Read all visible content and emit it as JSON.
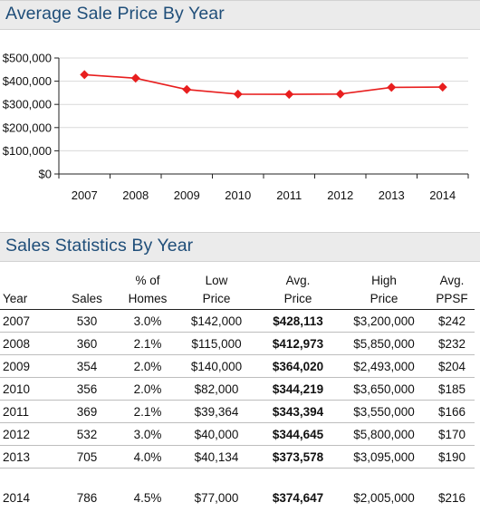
{
  "chart_title": "Average Sale Price By Year",
  "table_title": "Sales Statistics By Year",
  "colors": {
    "line": "#e81e1e",
    "title": "#1f4e79",
    "grid": "#d9d9d9",
    "banner": "#ebebeb"
  },
  "chart_data": {
    "type": "line",
    "title": "Average Sale Price By Year",
    "xlabel": "",
    "ylabel": "",
    "categories": [
      "2007",
      "2008",
      "2009",
      "2010",
      "2011",
      "2012",
      "2013",
      "2014"
    ],
    "series": [
      {
        "values": [
          428113,
          412973,
          364020,
          344219,
          343394,
          344645,
          373578,
          374647
        ]
      }
    ],
    "ylim": [
      0,
      500000
    ],
    "yticks": [
      0,
      100000,
      200000,
      300000,
      400000,
      500000
    ],
    "ytick_labels": [
      "$0",
      "$100,000",
      "$200,000",
      "$300,000",
      "$400,000",
      "$500,000"
    ],
    "grid": "horizontal",
    "marker": "diamond"
  },
  "table": {
    "headers": [
      {
        "key": "year",
        "label": "Year"
      },
      {
        "key": "sales",
        "label": "Sales"
      },
      {
        "key": "pct",
        "label": "% of\nHomes"
      },
      {
        "key": "low",
        "label": "Low\nPrice"
      },
      {
        "key": "avg",
        "label": "Avg.\nPrice"
      },
      {
        "key": "high",
        "label": "High\nPrice"
      },
      {
        "key": "ppsf",
        "label": "Avg.\nPPSF"
      }
    ],
    "rows": [
      {
        "year": "2007",
        "sales": "530",
        "pct": "3.0%",
        "low": "$142,000",
        "avg": "$428,113",
        "high": "$3,200,000",
        "ppsf": "$242"
      },
      {
        "year": "2008",
        "sales": "360",
        "pct": "2.1%",
        "low": "$115,000",
        "avg": "$412,973",
        "high": "$5,850,000",
        "ppsf": "$232"
      },
      {
        "year": "2009",
        "sales": "354",
        "pct": "2.0%",
        "low": "$140,000",
        "avg": "$364,020",
        "high": "$2,493,000",
        "ppsf": "$204"
      },
      {
        "year": "2010",
        "sales": "356",
        "pct": "2.0%",
        "low": "$82,000",
        "avg": "$344,219",
        "high": "$3,650,000",
        "ppsf": "$185"
      },
      {
        "year": "2011",
        "sales": "369",
        "pct": "2.1%",
        "low": "$39,364",
        "avg": "$343,394",
        "high": "$3,550,000",
        "ppsf": "$166"
      },
      {
        "year": "2012",
        "sales": "532",
        "pct": "3.0%",
        "low": "$40,000",
        "avg": "$344,645",
        "high": "$5,800,000",
        "ppsf": "$170"
      },
      {
        "year": "2013",
        "sales": "705",
        "pct": "4.0%",
        "low": "$40,134",
        "avg": "$373,578",
        "high": "$3,095,000",
        "ppsf": "$190"
      },
      {
        "year": "2014",
        "sales": "786",
        "pct": "4.5%",
        "low": "$77,000",
        "avg": "$374,647",
        "high": "$2,005,000",
        "ppsf": "$216"
      }
    ]
  }
}
